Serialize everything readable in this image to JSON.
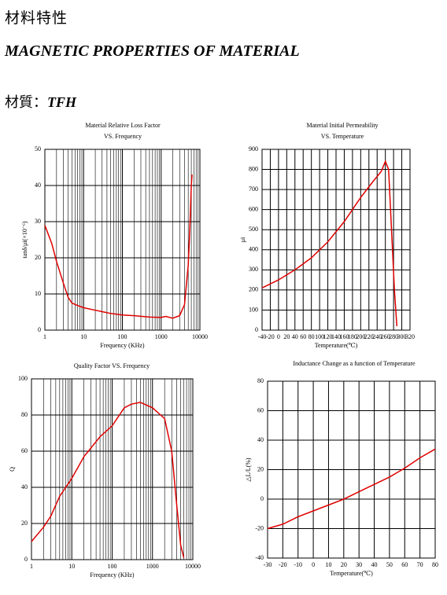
{
  "header": {
    "title_zh": "材料特性",
    "title_en": "MAGNETIC PROPERTIES OF MATERIAL",
    "material_label": "材質：",
    "material": "TFH"
  },
  "chart_data": [
    {
      "type": "line",
      "title": "Material Relative Loss Factor",
      "subtitle": "VS. Frequency",
      "x_label": "Frequency (KHz)",
      "y_label": "tanδ/μi(×10⁻⁶)",
      "log_x": true,
      "grid": true,
      "xlim": [
        1,
        10000
      ],
      "xticks": [
        1,
        10,
        100,
        1000,
        10000
      ],
      "ylim": [
        0,
        50
      ],
      "yticks": [
        0,
        10,
        20,
        30,
        40,
        50
      ],
      "x": [
        1,
        1.5,
        2,
        3,
        4,
        5,
        7,
        10,
        20,
        50,
        100,
        200,
        500,
        1000,
        1300,
        2000,
        3000,
        4000,
        5000,
        5500,
        6000,
        6300
      ],
      "series": [
        {
          "color": "#e00000",
          "values": [
            29,
            24,
            19,
            13,
            9,
            7.5,
            6.8,
            6.2,
            5.5,
            4.6,
            4.2,
            4,
            3.6,
            3.5,
            3.8,
            3.3,
            4,
            7,
            18,
            28,
            40,
            43
          ]
        }
      ]
    },
    {
      "type": "line",
      "title": "Material Initial Permeability",
      "subtitle": "VS. Temperature",
      "x_label": "Temperature(℃)",
      "y_label": "μi",
      "log_x": false,
      "grid": true,
      "xlim": [
        -40,
        320
      ],
      "xticks": [
        -40,
        -20,
        0,
        20,
        40,
        60,
        80,
        100,
        120,
        140,
        160,
        180,
        200,
        220,
        240,
        260,
        280,
        300,
        320
      ],
      "ylim": [
        0,
        900
      ],
      "yticks": [
        0,
        100,
        200,
        300,
        400,
        500,
        600,
        700,
        800,
        900
      ],
      "x": [
        -40,
        0,
        40,
        80,
        120,
        160,
        200,
        230,
        250,
        260,
        268,
        275,
        282,
        288
      ],
      "series": [
        {
          "color": "#e00000",
          "values": [
            210,
            250,
            300,
            360,
            440,
            540,
            660,
            740,
            790,
            840,
            800,
            500,
            200,
            20
          ]
        }
      ]
    },
    {
      "type": "line",
      "title": "Quality Factor  VS. Frequency",
      "x_label": "Frequency (KHz)",
      "y_label": "Q",
      "log_x": true,
      "grid": true,
      "xlim": [
        1,
        10000
      ],
      "xticks": [
        1,
        10,
        100,
        1000,
        10000
      ],
      "ylim": [
        0,
        100
      ],
      "yticks": [
        0,
        20,
        40,
        60,
        80,
        100
      ],
      "x": [
        1,
        2,
        3,
        5,
        10,
        20,
        50,
        100,
        200,
        300,
        500,
        1000,
        2000,
        3000,
        4000,
        5000,
        6000
      ],
      "series": [
        {
          "color": "#e00000",
          "values": [
            10,
            18,
            24,
            35,
            45,
            57,
            68,
            74,
            84,
            86,
            87,
            84,
            78,
            60,
            30,
            8,
            1
          ]
        }
      ]
    },
    {
      "type": "line",
      "title": "Inductance Change as a function of Temperature",
      "x_label": "Temperature(℃)",
      "y_label": "△L/L(%)",
      "log_x": false,
      "grid": true,
      "xlim": [
        -30,
        80
      ],
      "xticks": [
        -30,
        -20,
        -10,
        0,
        10,
        20,
        30,
        40,
        50,
        60,
        70,
        80
      ],
      "ylim": [
        -40,
        80
      ],
      "yticks": [
        -40,
        -20,
        0,
        20,
        40,
        60,
        80
      ],
      "x": [
        -30,
        -20,
        -10,
        0,
        10,
        20,
        30,
        40,
        50,
        60,
        70,
        80
      ],
      "series": [
        {
          "color": "#e00000",
          "values": [
            -20,
            -17,
            -12,
            -8,
            -4,
            0,
            5,
            10,
            15,
            21,
            28,
            34
          ]
        }
      ]
    }
  ]
}
